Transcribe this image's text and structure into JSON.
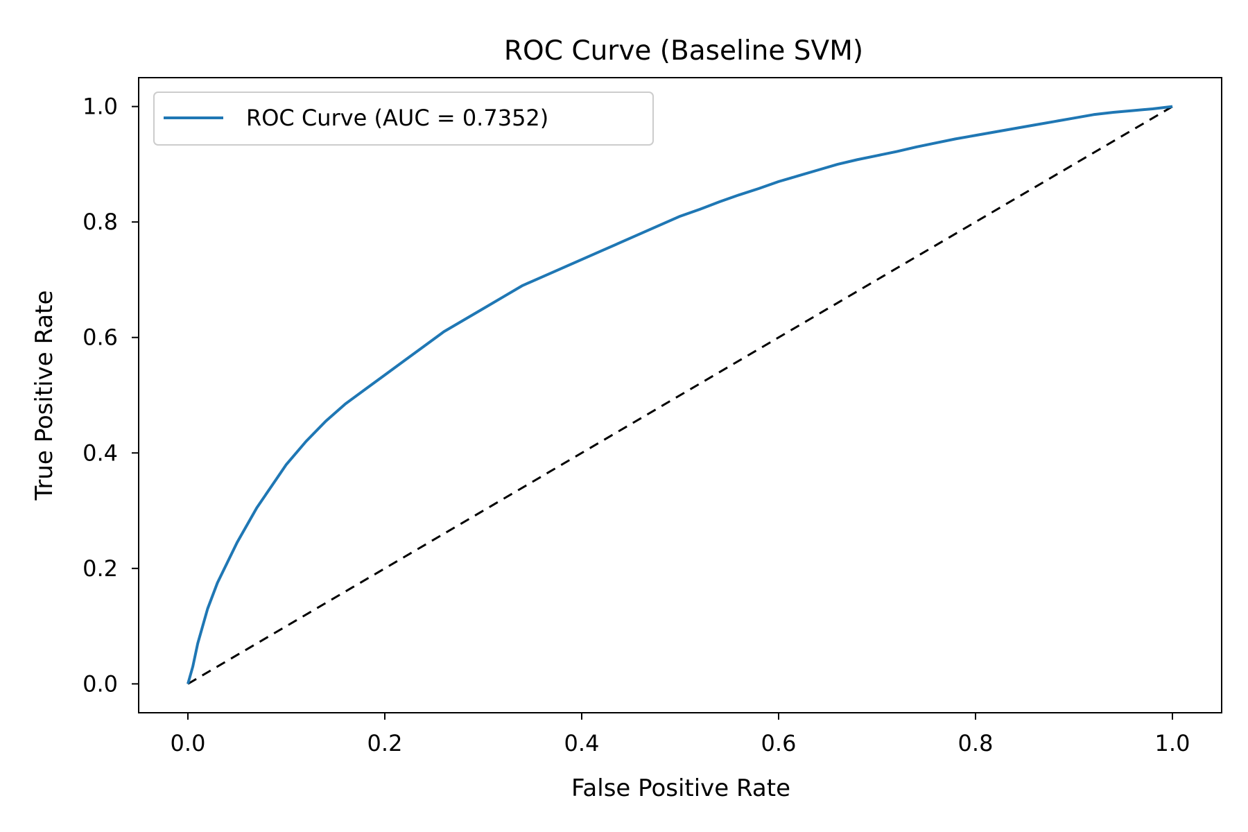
{
  "chart_data": {
    "type": "line",
    "title": "ROC Curve (Baseline SVM)",
    "xlabel": "False Positive Rate",
    "ylabel": "True Positive Rate",
    "xlim": [
      -0.05,
      1.05
    ],
    "ylim": [
      -0.05,
      1.05
    ],
    "x_ticks": [
      0.0,
      0.2,
      0.4,
      0.6,
      0.8,
      1.0
    ],
    "x_tick_labels": [
      "0.0",
      "0.2",
      "0.4",
      "0.6",
      "0.8",
      "1.0"
    ],
    "y_ticks": [
      0.0,
      0.2,
      0.4,
      0.6,
      0.8,
      1.0
    ],
    "y_tick_labels": [
      "0.0",
      "0.2",
      "0.4",
      "0.6",
      "0.8",
      "1.0"
    ],
    "grid": false,
    "legend_position": "top-left",
    "series": [
      {
        "name": "ROC Curve (AUC = 0.7352)",
        "color": "#1f77b4",
        "style": "solid",
        "x": [
          0.0,
          0.005,
          0.01,
          0.02,
          0.03,
          0.04,
          0.05,
          0.06,
          0.07,
          0.08,
          0.09,
          0.1,
          0.12,
          0.14,
          0.16,
          0.18,
          0.2,
          0.22,
          0.24,
          0.26,
          0.28,
          0.3,
          0.32,
          0.34,
          0.36,
          0.38,
          0.4,
          0.42,
          0.44,
          0.46,
          0.48,
          0.5,
          0.52,
          0.54,
          0.56,
          0.58,
          0.6,
          0.62,
          0.64,
          0.66,
          0.68,
          0.7,
          0.72,
          0.74,
          0.76,
          0.78,
          0.8,
          0.82,
          0.84,
          0.86,
          0.88,
          0.9,
          0.92,
          0.94,
          0.96,
          0.98,
          1.0
        ],
        "y": [
          0.0,
          0.03,
          0.07,
          0.13,
          0.175,
          0.21,
          0.245,
          0.275,
          0.305,
          0.33,
          0.355,
          0.38,
          0.42,
          0.455,
          0.485,
          0.51,
          0.535,
          0.56,
          0.585,
          0.61,
          0.63,
          0.65,
          0.67,
          0.69,
          0.705,
          0.72,
          0.735,
          0.75,
          0.765,
          0.78,
          0.795,
          0.81,
          0.822,
          0.835,
          0.847,
          0.858,
          0.87,
          0.88,
          0.89,
          0.9,
          0.908,
          0.915,
          0.922,
          0.93,
          0.937,
          0.944,
          0.95,
          0.956,
          0.962,
          0.968,
          0.974,
          0.98,
          0.986,
          0.99,
          0.993,
          0.996,
          1.0
        ]
      },
      {
        "name": "",
        "color": "#000000",
        "style": "dashed",
        "x": [
          0.0,
          1.0
        ],
        "y": [
          0.0,
          1.0
        ]
      }
    ]
  }
}
